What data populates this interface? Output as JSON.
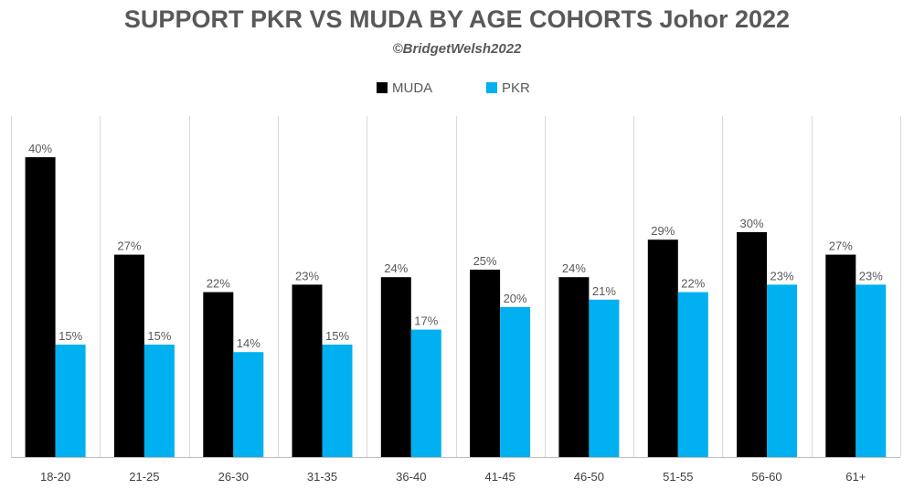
{
  "chart_data": {
    "type": "bar",
    "title": "SUPPORT PKR VS MUDA BY AGE COHORTS Johor 2022",
    "subtitle": "©BridgetWelsh2022",
    "xlabel": "",
    "ylabel": "",
    "categories": [
      "18-20",
      "21-25",
      "26-30",
      "31-35",
      "36-40",
      "41-45",
      "46-50",
      "51-55",
      "56-60",
      "61+"
    ],
    "series": [
      {
        "name": "MUDA",
        "color": "#000000",
        "values": [
          40,
          27,
          22,
          23,
          24,
          25,
          24,
          29,
          30,
          27
        ],
        "labels": [
          "40%",
          "27%",
          "22%",
          "23%",
          "24%",
          "25%",
          "24%",
          "29%",
          "30%",
          "27%"
        ]
      },
      {
        "name": "PKR",
        "color": "#00B0F0",
        "values": [
          15,
          15,
          14,
          15,
          17,
          20,
          21,
          22,
          23,
          23
        ],
        "labels": [
          "15%",
          "15%",
          "14%",
          "15%",
          "17%",
          "20%",
          "21%",
          "22%",
          "23%",
          "23%"
        ]
      }
    ],
    "ylim": [
      0,
      40.5
    ],
    "unit": "%",
    "grid": "vertical category separators",
    "legend": "top-center",
    "colors": {
      "gridline": "#D9D9D9",
      "axis": "#BFBFBF",
      "text": "#595959"
    }
  }
}
